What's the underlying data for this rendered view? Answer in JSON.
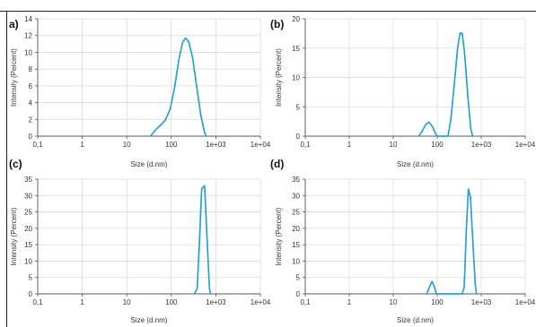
{
  "colors": {
    "curve": "#2a9fd6",
    "frame": "#222222"
  },
  "chart_data": [
    {
      "panel_label": "a)",
      "type": "line",
      "xscale": "log",
      "xlim": [
        0.1,
        10000
      ],
      "ylim": [
        0,
        14
      ],
      "x_ticks": [
        0.1,
        1,
        10,
        100,
        1000,
        10000
      ],
      "x_tick_labels": [
        "0,1",
        "1",
        "10",
        "100",
        "1e+03",
        "1e+04"
      ],
      "y_ticks": [
        0,
        2,
        4,
        6,
        8,
        10,
        12,
        14
      ],
      "y_tick_labels": [
        "0",
        "2",
        "4",
        "6",
        "8",
        "10",
        "12",
        "14"
      ],
      "xlabel": "Size (d.nm)",
      "ylabel": "Intensity (Percent)",
      "grid": true,
      "series": [
        {
          "points": [
            [
              34,
              0
            ],
            [
              45,
              0.8
            ],
            [
              60,
              1.4
            ],
            [
              75,
              2.0
            ],
            [
              95,
              3.3
            ],
            [
              120,
              6.0
            ],
            [
              150,
              9.3
            ],
            [
              180,
              11.2
            ],
            [
              210,
              11.7
            ],
            [
              245,
              11.3
            ],
            [
              300,
              9.4
            ],
            [
              370,
              6.0
            ],
            [
              460,
              2.5
            ],
            [
              560,
              0.4
            ],
            [
              620,
              0
            ]
          ]
        }
      ]
    },
    {
      "panel_label": "(b)",
      "type": "line",
      "xscale": "log",
      "xlim": [
        0.1,
        10000
      ],
      "ylim": [
        0,
        20
      ],
      "x_ticks": [
        0.1,
        1,
        10,
        100,
        1000,
        10000
      ],
      "x_tick_labels": [
        "0,1",
        "1",
        "10",
        "100",
        "1e+03",
        "1e+04"
      ],
      "y_ticks": [
        0,
        5,
        10,
        15,
        20
      ],
      "y_tick_labels": [
        "0",
        "5",
        "10",
        "15",
        "20"
      ],
      "xlabel": "Size (d.nm)",
      "ylabel": "Intensity (Percent)",
      "grid": true,
      "series": [
        {
          "points": [
            [
              38,
              0
            ],
            [
              45,
              0.8
            ],
            [
              55,
              2.0
            ],
            [
              65,
              2.4
            ],
            [
              78,
              1.6
            ],
            [
              92,
              0.4
            ],
            [
              100,
              0
            ],
            [
              175,
              0
            ],
            [
              205,
              3.0
            ],
            [
              245,
              9.0
            ],
            [
              290,
              15.0
            ],
            [
              330,
              17.6
            ],
            [
              370,
              17.5
            ],
            [
              420,
              14.0
            ],
            [
              500,
              6.5
            ],
            [
              580,
              1.2
            ],
            [
              640,
              0
            ]
          ]
        }
      ]
    },
    {
      "panel_label": "(c)",
      "type": "line",
      "xscale": "log",
      "xlim": [
        0.1,
        10000
      ],
      "ylim": [
        0,
        35
      ],
      "x_ticks": [
        0.1,
        1,
        10,
        100,
        1000,
        10000
      ],
      "x_tick_labels": [
        "0,1",
        "1",
        "10",
        "100",
        "1e+03",
        "1e+04"
      ],
      "y_ticks": [
        0,
        5,
        10,
        15,
        20,
        25,
        30,
        35
      ],
      "y_tick_labels": [
        "0",
        "5",
        "10",
        "15",
        "20",
        "25",
        "30",
        "35"
      ],
      "xlabel": "Size (d.nm)",
      "ylabel": "Intensity (Percent)",
      "grid": true,
      "series": [
        {
          "points": [
            [
              330,
              0
            ],
            [
              380,
              1.5
            ],
            [
              430,
              16.0
            ],
            [
              480,
              32.0
            ],
            [
              560,
              33.0
            ],
            [
              640,
              16.0
            ],
            [
              720,
              1.5
            ],
            [
              760,
              0
            ]
          ]
        }
      ]
    },
    {
      "panel_label": "(d)",
      "type": "line",
      "xscale": "log",
      "xlim": [
        0.1,
        10000
      ],
      "ylim": [
        0,
        35
      ],
      "x_ticks": [
        0.1,
        1,
        10,
        100,
        1000,
        10000
      ],
      "x_tick_labels": [
        "0,1",
        "1",
        "10",
        "100",
        "1e+03",
        "1e+04"
      ],
      "y_ticks": [
        0,
        5,
        10,
        15,
        20,
        25,
        30,
        35
      ],
      "y_tick_labels": [
        "0",
        "5",
        "10",
        "15",
        "20",
        "25",
        "30",
        "35"
      ],
      "xlabel": "Size (d.nm)",
      "ylabel": "Intensity (Percent)",
      "grid": true,
      "series": [
        {
          "points": [
            [
              58,
              0
            ],
            [
              66,
              2.0
            ],
            [
              76,
              3.8
            ],
            [
              86,
              2.2
            ],
            [
              95,
              0
            ],
            [
              370,
              0
            ],
            [
              410,
              2.0
            ],
            [
              460,
              20.0
            ],
            [
              510,
              32.0
            ],
            [
              570,
              29.5
            ],
            [
              650,
              15.0
            ],
            [
              730,
              3.0
            ],
            [
              780,
              0
            ]
          ]
        }
      ]
    }
  ]
}
